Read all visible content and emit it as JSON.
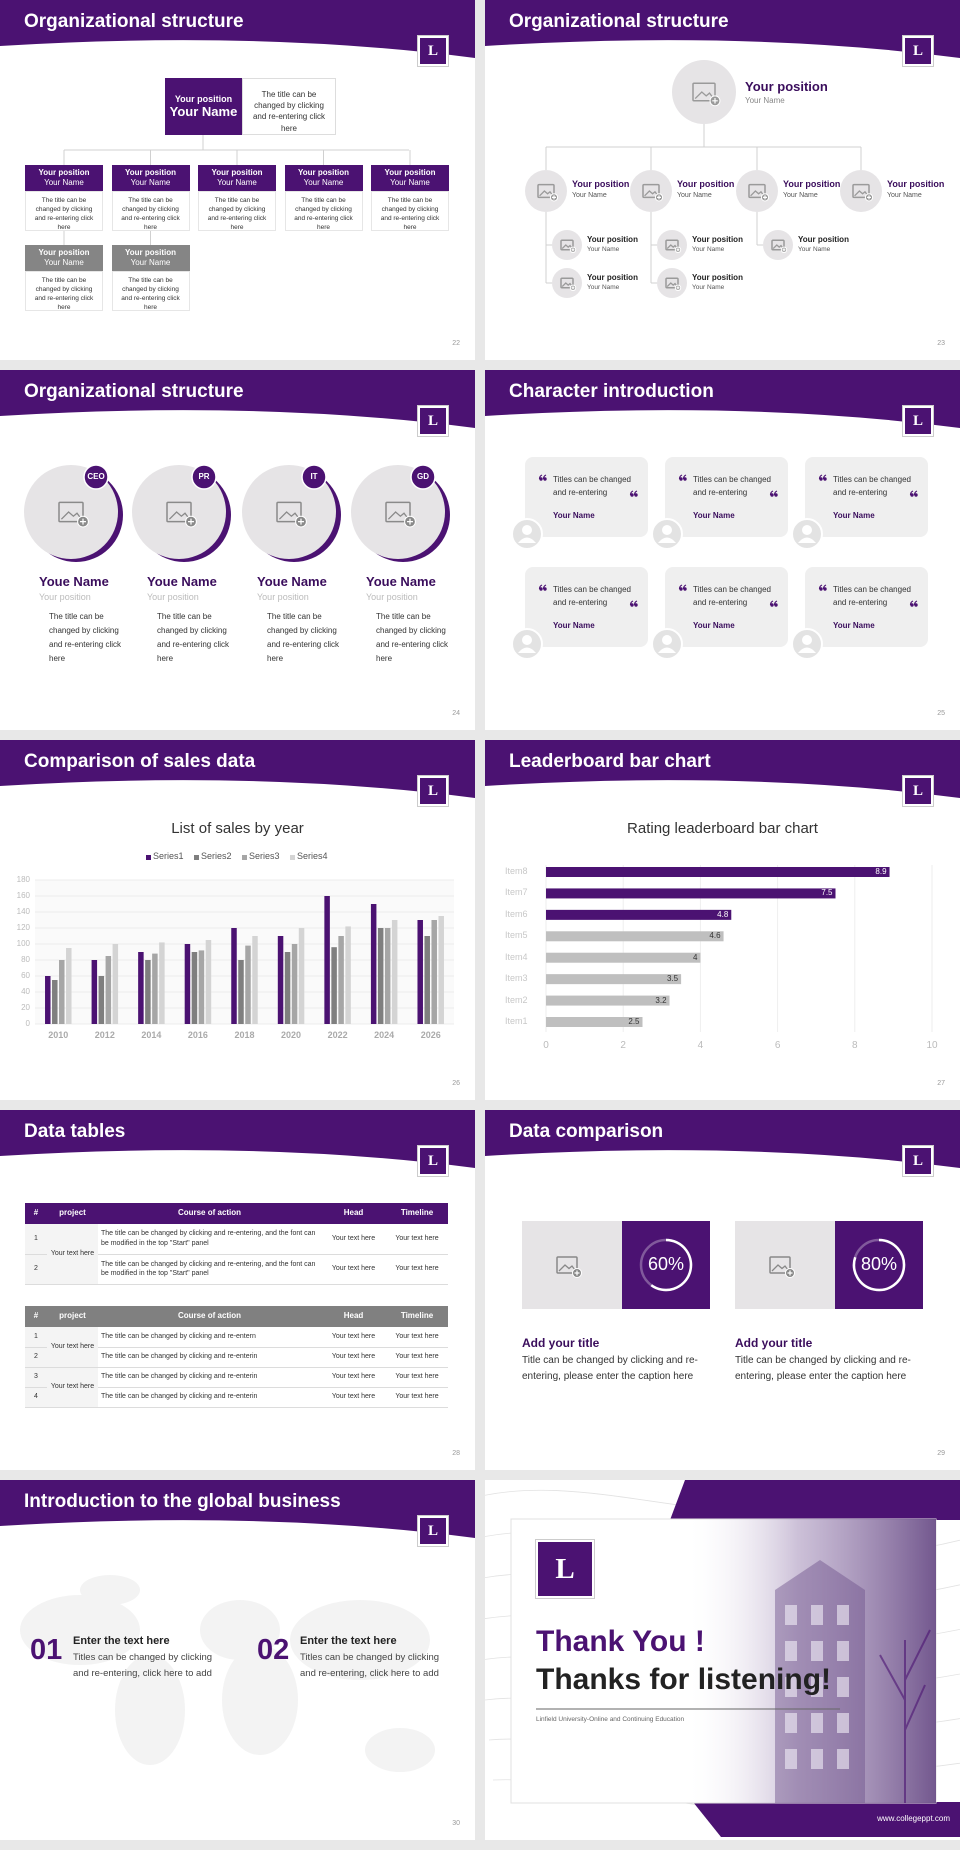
{
  "logo_letter": "L",
  "slides": [
    {
      "title": "Organizational structure",
      "page": "22",
      "head": {
        "position": "Your position",
        "name": "Your Name",
        "text": "The title can be changed by clicking and re-entering click here"
      },
      "members": [
        {
          "position": "Your position",
          "name": "Your Name",
          "text": "The title can be changed by clicking and re-entering click here"
        },
        {
          "position": "Your position",
          "name": "Your Name",
          "text": "The title can be changed by clicking and re-entering click here"
        },
        {
          "position": "Your position",
          "name": "Your Name",
          "text": "The title can be changed by clicking and re-entering click here"
        },
        {
          "position": "Your position",
          "name": "Your Name",
          "text": "The title can be changed by clicking and re-entering click here"
        },
        {
          "position": "Your position",
          "name": "Your Name",
          "text": "The title can be changed by clicking and re-entering click here"
        },
        {
          "position": "Your position",
          "name": "Your Name",
          "text": "The title can be changed by clicking and re-entering click here"
        },
        {
          "position": "Your position",
          "name": "Your Name",
          "text": "The title can be changed by clicking and re-entering click here"
        }
      ]
    },
    {
      "title": "Organizational structure",
      "page": "23",
      "head": {
        "position": "Your position",
        "name": "Your Name"
      },
      "groups": [
        {
          "position": "Your position",
          "name": "Your Name",
          "members": [
            {
              "position": "Your position",
              "name": "Your Name"
            },
            {
              "position": "Your position",
              "name": "Your Name"
            }
          ]
        },
        {
          "position": "Your position",
          "name": "Your Name",
          "members": [
            {
              "position": "Your position",
              "name": "Your Name"
            },
            {
              "position": "Your position",
              "name": "Your Name"
            }
          ]
        },
        {
          "position": "Your position",
          "name": "Your Name",
          "members": [
            {
              "position": "Your position",
              "name": "Your Name"
            }
          ]
        },
        {
          "position": "Your position",
          "name": "Your Name",
          "members": []
        }
      ]
    },
    {
      "title": "Organizational structure",
      "page": "24",
      "people": [
        {
          "badge": "CEO",
          "name": "Youe Name",
          "position": "Your position",
          "text": "The title can be changed by clicking and re-entering click here"
        },
        {
          "badge": "PR",
          "name": "Youe Name",
          "position": "Your position",
          "text": "The title can be changed by clicking and re-entering click here"
        },
        {
          "badge": "IT",
          "name": "Youe Name",
          "position": "Your position",
          "text": "The title can be changed by clicking and re-entering click here"
        },
        {
          "badge": "GD",
          "name": "Youe Name",
          "position": "Your position",
          "text": "The title can be changed by clicking and re-entering click here"
        }
      ]
    },
    {
      "title": "Character introduction",
      "page": "25",
      "cards": [
        {
          "text": "Titles can be changed and re-entering",
          "name": "Your Name"
        },
        {
          "text": "Titles can be changed and re-entering",
          "name": "Your Name"
        },
        {
          "text": "Titles can be changed and re-entering",
          "name": "Your Name"
        },
        {
          "text": "Titles can be changed and re-entering",
          "name": "Your Name"
        },
        {
          "text": "Titles can be changed and re-entering",
          "name": "Your Name"
        },
        {
          "text": "Titles can be changed and re-entering",
          "name": "Your Name"
        }
      ]
    },
    {
      "title": "Comparison of sales data",
      "page": "26",
      "chart": {
        "type": "bar",
        "title": "List of sales by year",
        "categories": [
          "2010",
          "2012",
          "2014",
          "2016",
          "2018",
          "2020",
          "2022",
          "2024",
          "2026"
        ],
        "series": [
          {
            "name": "Series1",
            "color": "#4b1272",
            "values": [
              60,
              80,
              90,
              100,
              120,
              110,
              160,
              150,
              130
            ]
          },
          {
            "name": "Series2",
            "color": "#7f7f7f",
            "values": [
              55,
              60,
              80,
              90,
              80,
              90,
              96,
              120,
              110
            ]
          },
          {
            "name": "Series3",
            "color": "#a6a6a6",
            "values": [
              80,
              85,
              88,
              92,
              98,
              100,
              110,
              120,
              130
            ]
          },
          {
            "name": "Series4",
            "color": "#d4d4d4",
            "values": [
              95,
              100,
              102,
              105,
              110,
              120,
              122,
              130,
              135
            ]
          }
        ],
        "ylim": [
          0,
          180
        ],
        "yticks": [
          0,
          20,
          40,
          60,
          80,
          100,
          120,
          140,
          160,
          180
        ],
        "grid": true,
        "legend": "top"
      }
    },
    {
      "title": "Leaderboard bar chart",
      "page": "27",
      "chart": {
        "type": "barh",
        "title": "Rating leaderboard bar chart",
        "categories": [
          "Item1",
          "Item2",
          "Item3",
          "Item4",
          "Item5",
          "Item6",
          "Item7",
          "Item8"
        ],
        "values": [
          2.5,
          3.2,
          3.5,
          4,
          4.6,
          4.8,
          7.5,
          8.9
        ],
        "colors": [
          "#bfbfbf",
          "#bfbfbf",
          "#bfbfbf",
          "#bfbfbf",
          "#bfbfbf",
          "#4b1272",
          "#4b1272",
          "#4b1272"
        ],
        "xlim": [
          0,
          10
        ],
        "xticks": [
          0,
          2,
          4,
          6,
          8,
          10
        ],
        "grid": true
      }
    },
    {
      "title": "Data tables",
      "page": "28",
      "tables": [
        {
          "header": [
            "#",
            "project",
            "Course of action",
            "Head",
            "Timeline"
          ],
          "groups": [
            {
              "project": "Your text here",
              "rows": [
                [
                  "1",
                  "The title can be changed by clicking and re-entering, and the font can be modified in the top \"Start\" panel",
                  "Your text here",
                  "Your text here"
                ],
                [
                  "2",
                  "The title can be changed by clicking and re-entering, and the font can be modified in the top \"Start\" panel",
                  "Your text here",
                  "Your text here"
                ]
              ]
            }
          ]
        },
        {
          "header": [
            "#",
            "project",
            "Course of action",
            "Head",
            "Timeline"
          ],
          "groups": [
            {
              "project": "Your text here",
              "rows": [
                [
                  "1",
                  "The title can be changed by clicking and re-entern",
                  "Your text here",
                  "Your text here"
                ],
                [
                  "2",
                  "The title can be changed by clicking and re-enterin",
                  "Your text here",
                  "Your text here"
                ]
              ]
            },
            {
              "project": "Your text here",
              "rows": [
                [
                  "3",
                  "The title can be changed by clicking and re-enterin",
                  "Your text here",
                  "Your text here"
                ],
                [
                  "4",
                  "The title can be changed by clicking and re-enterin",
                  "Your text here",
                  "Your text here"
                ]
              ]
            }
          ]
        }
      ]
    },
    {
      "title": "Data comparison",
      "page": "29",
      "items": [
        {
          "value": 60,
          "value_label": "60%",
          "title": "Add your title",
          "text": "Title can be changed by clicking and re-entering, please enter the caption here"
        },
        {
          "value": 80,
          "value_label": "80%",
          "title": "Add your title",
          "text": "Title can be changed by clicking and re-entering, please enter the caption here"
        }
      ]
    },
    {
      "title": "Introduction to the global business",
      "page": "30",
      "items": [
        {
          "number": "01",
          "title": "Enter the text here",
          "text": "Titles can be changed by clicking and re-entering, click here to add"
        },
        {
          "number": "02",
          "title": "Enter the text here",
          "text": "Titles can be changed by clicking and re-entering, click here to add"
        }
      ]
    },
    {
      "thanks": "Thank You !",
      "subtitle": "Thanks for listening!",
      "caption": "Linfield University-Online and Continuing Education",
      "url": "www.collegeppt.com"
    }
  ]
}
